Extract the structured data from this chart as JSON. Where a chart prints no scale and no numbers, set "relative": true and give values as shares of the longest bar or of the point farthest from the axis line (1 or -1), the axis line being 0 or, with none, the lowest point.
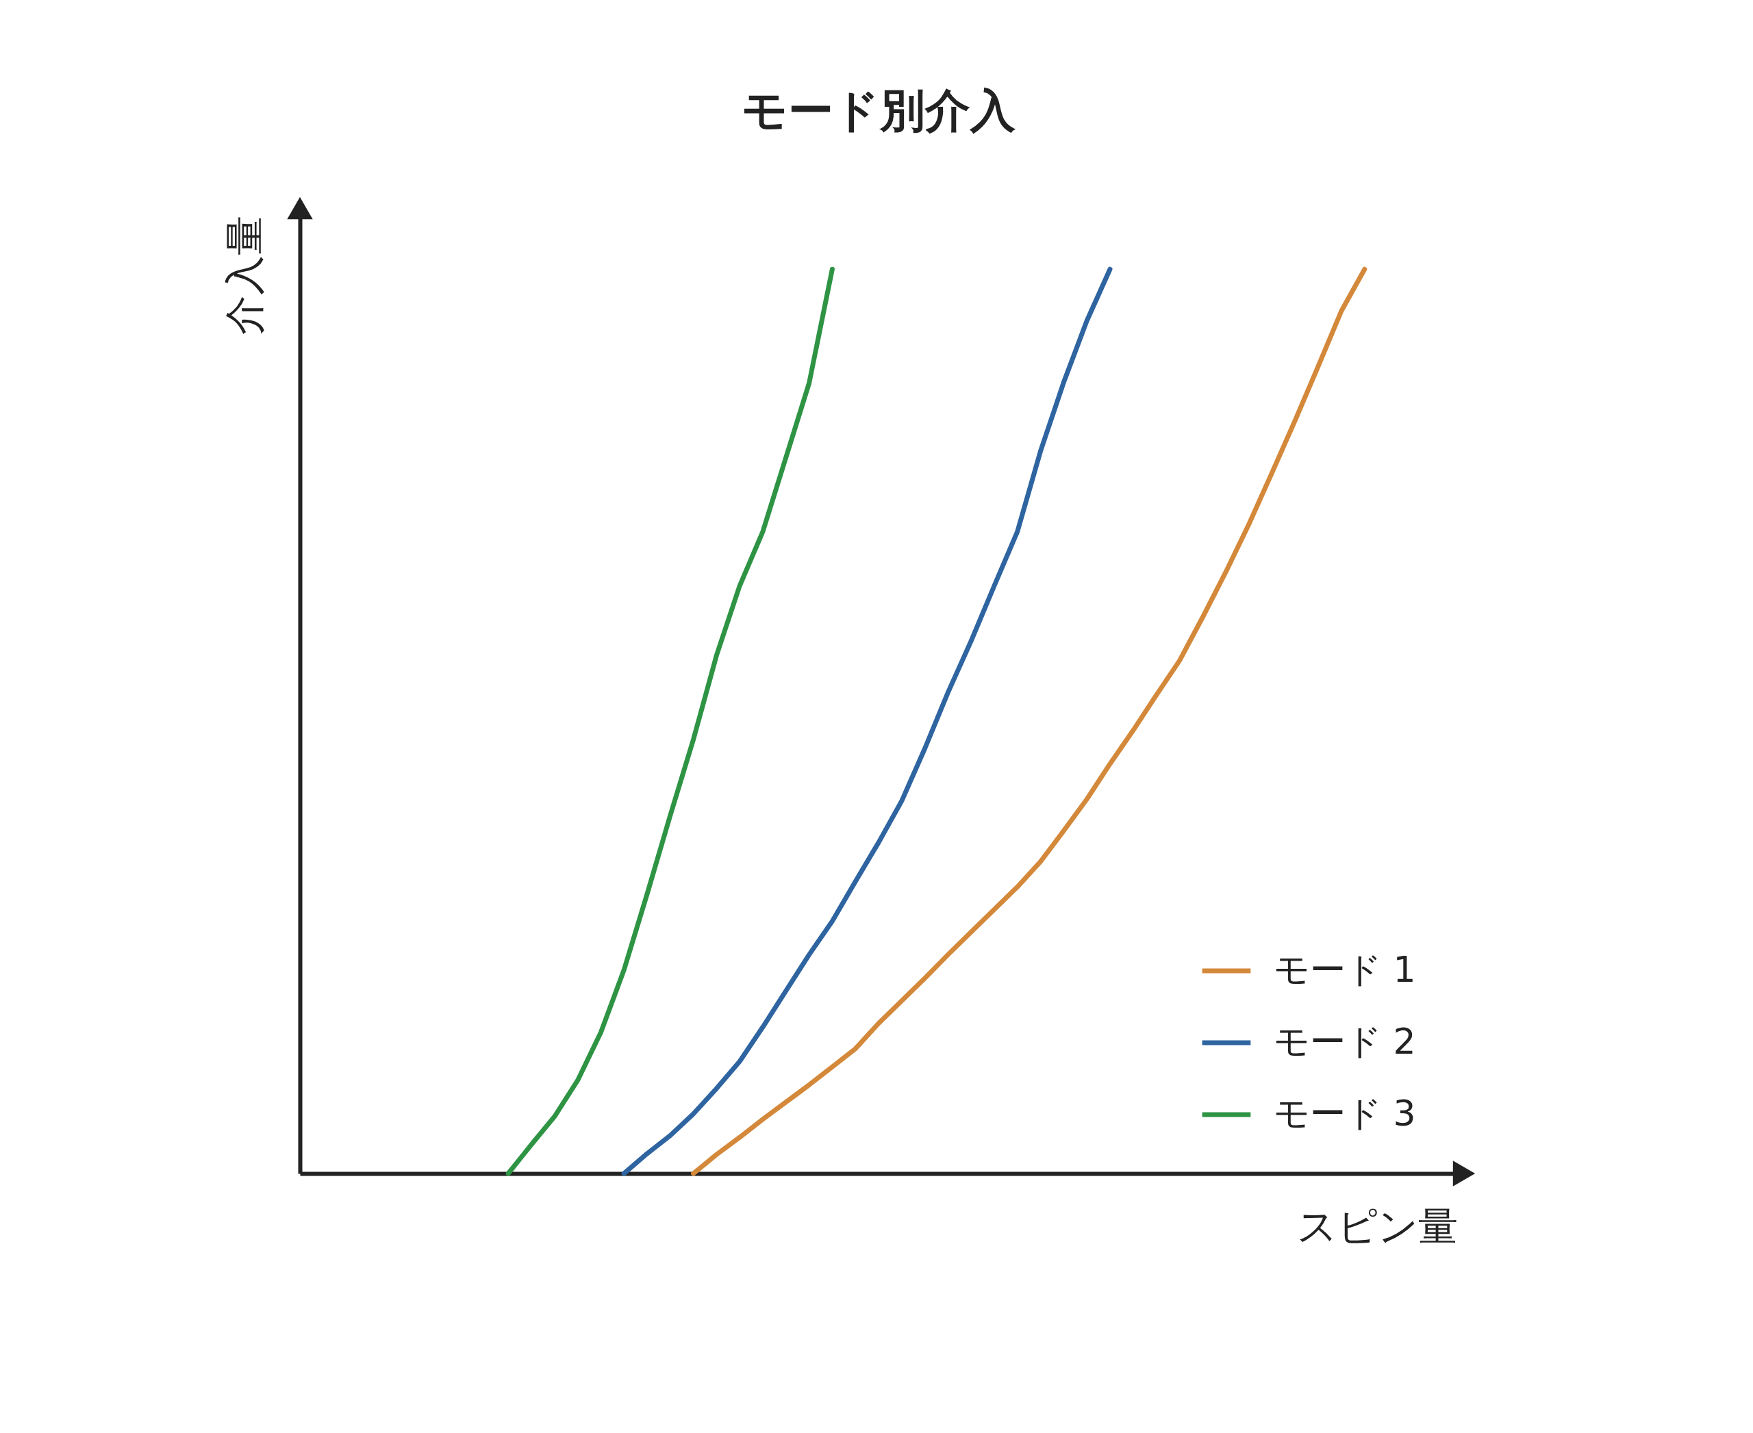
{
  "chart_data": {
    "type": "line",
    "title": "モード別介入",
    "xlabel": "スピン量",
    "ylabel": "介入量",
    "relative": true,
    "legend": "bottom right",
    "grid": false,
    "marker": "none",
    "line_style": "solid",
    "tick_labels": false,
    "categories": [
      null,
      null,
      null,
      null,
      null,
      null,
      null,
      null,
      null,
      null,
      null,
      null,
      null,
      null,
      null,
      null,
      null,
      null,
      null,
      null,
      null,
      null,
      null,
      null,
      null,
      null,
      null,
      null,
      null,
      null,
      null,
      null,
      null,
      null,
      null,
      null,
      null,
      null,
      null,
      null,
      null,
      null,
      null,
      null,
      null,
      null,
      null,
      null,
      null,
      null,
      null
    ],
    "series": [
      {
        "name": "モード 1",
        "color": "#d4883a",
        "values": [
          null,
          null,
          null,
          null,
          null,
          null,
          null,
          null,
          null,
          null,
          null,
          null,
          null,
          null,
          null,
          null,
          null,
          0,
          0.021,
          0.04,
          0.06,
          0.079,
          0.098,
          0.118,
          0.138,
          0.166,
          0.191,
          0.216,
          0.242,
          0.267,
          0.292,
          0.317,
          0.345,
          0.379,
          0.414,
          0.453,
          0.49,
          0.529,
          0.567,
          0.615,
          0.665,
          0.718,
          0.775,
          0.833,
          0.893,
          0.954,
          1,
          null,
          null,
          null,
          null
        ]
      },
      {
        "name": "モード 2",
        "color": "#2e64a0",
        "values": [
          null,
          null,
          null,
          null,
          null,
          null,
          null,
          null,
          null,
          null,
          null,
          null,
          null,
          null,
          0,
          0.022,
          0.042,
          0.066,
          0.094,
          0.124,
          0.162,
          0.202,
          0.242,
          0.279,
          0.323,
          0.366,
          0.412,
          0.47,
          0.532,
          0.589,
          0.65,
          0.71,
          0.799,
          0.875,
          0.943,
          1,
          null,
          null,
          null,
          null,
          null,
          null,
          null,
          null,
          null,
          null,
          null,
          null,
          null,
          null,
          null
        ]
      },
      {
        "name": "モード 3",
        "color": "#2e9444",
        "values": [
          null,
          null,
          null,
          null,
          null,
          null,
          null,
          null,
          null,
          0,
          0.032,
          0.063,
          0.103,
          0.156,
          0.225,
          0.309,
          0.396,
          0.48,
          0.573,
          0.65,
          0.71,
          0.792,
          0.874,
          1,
          null,
          null,
          null,
          null,
          null,
          null,
          null,
          null,
          null,
          null,
          null,
          null,
          null,
          null,
          null,
          null,
          null,
          null,
          null,
          null,
          null,
          null,
          null,
          null,
          null,
          null,
          null
        ]
      }
    ]
  }
}
